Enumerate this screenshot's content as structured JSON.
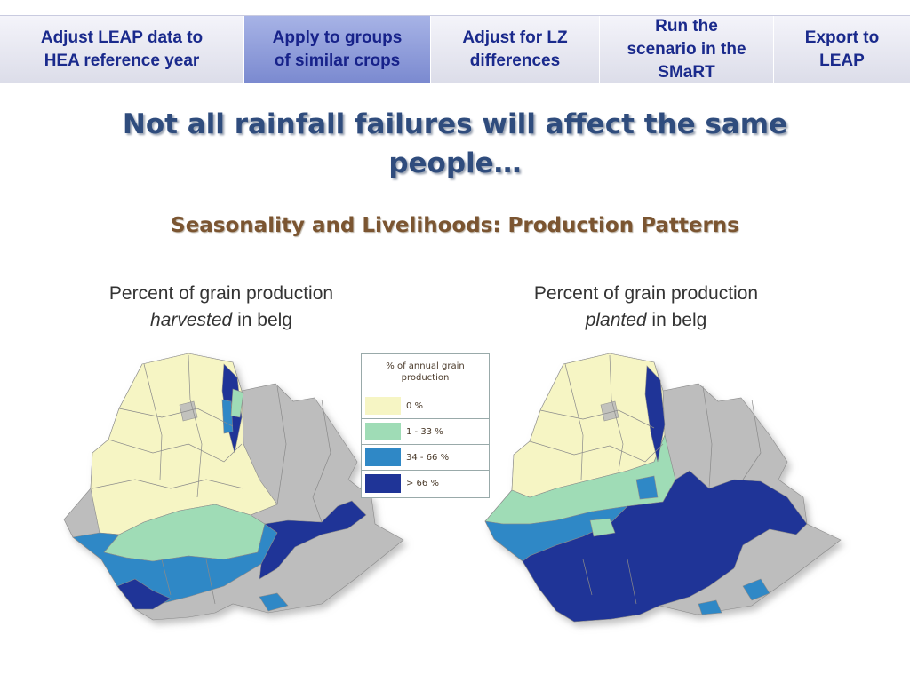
{
  "nav": {
    "steps": [
      {
        "label": "Adjust LEAP data to\nHEA reference year"
      },
      {
        "label": "Apply to groups\nof similar crops",
        "active": true
      },
      {
        "label": "Adjust for LZ\ndifferences"
      },
      {
        "label": "Run the\nscenario in the\nSMaRT"
      },
      {
        "label": "Export to\nLEAP"
      }
    ]
  },
  "title": "Not all rainfall failures will affect the same people…",
  "subtitle": "Seasonality and Livelihoods: Production Patterns",
  "maps": {
    "left": {
      "caption_1": "Percent of grain production",
      "caption_em": "harvested",
      "caption_2": " in belg"
    },
    "right": {
      "caption_1": "Percent of grain production",
      "caption_em": "planted",
      "caption_2": " in belg"
    }
  },
  "legend": {
    "title": "% of annual grain production",
    "items": [
      {
        "label": "0 %",
        "color": "#f6f5c4"
      },
      {
        "label": "1 - 33 %",
        "color": "#9fdcb6"
      },
      {
        "label": "34 - 66 %",
        "color": "#2f88c6"
      },
      {
        "label": "> 66 %",
        "color": "#1f3497"
      }
    ]
  },
  "colors": {
    "outside": "#bdbdbd",
    "none": "#f6f5c4",
    "low": "#9fdcb6",
    "mid": "#2f88c6",
    "high": "#1f3497"
  }
}
